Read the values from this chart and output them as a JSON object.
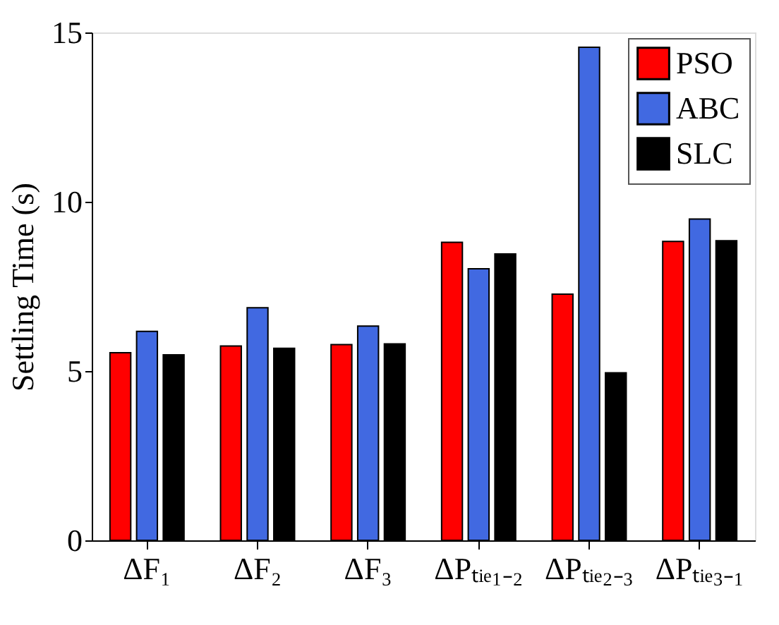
{
  "chart_data": {
    "type": "bar",
    "ylabel": "Settling Time (s)",
    "categories": [
      "ΔF₁",
      "ΔF₂",
      "ΔF₃",
      "ΔPₜᵢₑ₁₋₂",
      "ΔPₜᵢₑ₂₋₃",
      "ΔPₜᵢₑ₃₋₁"
    ],
    "series": [
      {
        "name": "PSO",
        "color": "#ff0000",
        "values": [
          5.54,
          5.74,
          5.78,
          8.8,
          7.27,
          8.83
        ]
      },
      {
        "name": "ABC",
        "color": "#4169e1",
        "values": [
          6.17,
          6.87,
          6.33,
          8.02,
          14.56,
          9.49
        ]
      },
      {
        "name": "SLC",
        "color": "#000000",
        "values": [
          5.48,
          5.67,
          5.8,
          8.46,
          4.95,
          8.85
        ]
      }
    ],
    "ylim": [
      0,
      15
    ],
    "yticks": [
      0,
      5,
      10,
      15
    ],
    "grid": false,
    "legend": "top right"
  }
}
